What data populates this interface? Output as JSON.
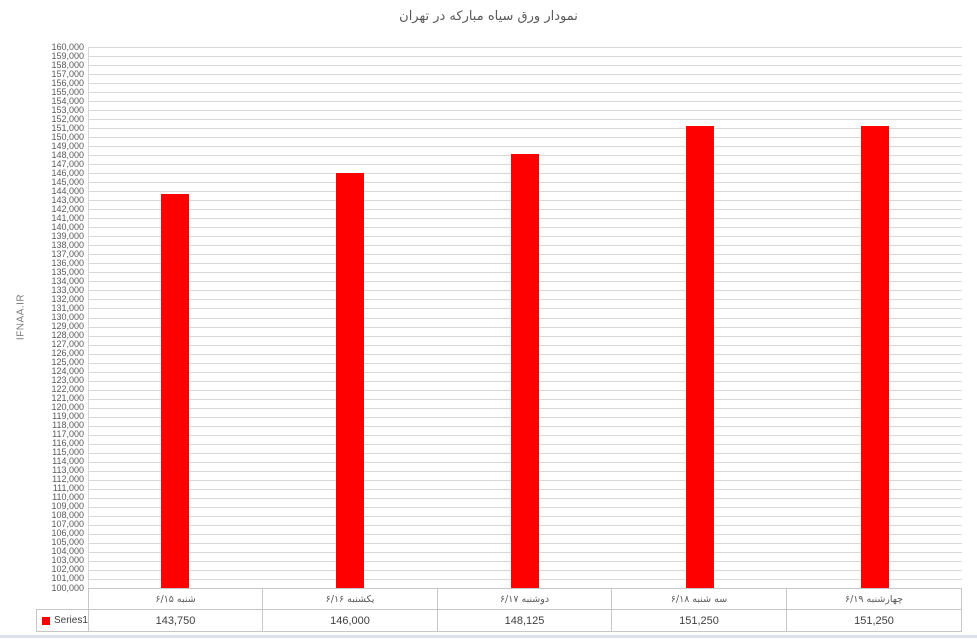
{
  "chart_data": {
    "type": "bar",
    "title": "نمودار ورق سیاه مبارکه در تهران",
    "ylabel": "IFNAA.IR",
    "xlabel": "",
    "categories": [
      "شنبه ۶/۱۵",
      "یکشنبه ۶/۱۶",
      "دوشنبه ۶/۱۷",
      "سه شنبه ۶/۱۸",
      "چهارشنبه ۶/۱۹"
    ],
    "series": [
      {
        "name": "Series1",
        "color": "#FF0000",
        "values": [
          143750,
          146000,
          148125,
          151250,
          151250
        ]
      }
    ],
    "value_labels": [
      "143,750",
      "146,000",
      "148,125",
      "151,250",
      "151,250"
    ],
    "ylim": [
      100000,
      160000
    ],
    "ytick_step": 1000,
    "ytick_format": "comma-thousands",
    "grid": true,
    "legend_position": "bottom-left",
    "data_table": true
  },
  "colors": {
    "bar": "#FF0000",
    "gridline": "#D9D9D9",
    "axis_line": "#D9D9D9",
    "tick_text": "#595959",
    "category_text": "#595959",
    "value_text": "#404040",
    "title_text": "#595959",
    "y_axis_title_text": "#7B7B7B",
    "table_border": "#C6C6C6",
    "bottom_strip": "#DCE2EC",
    "background": "#FFFFFF"
  }
}
